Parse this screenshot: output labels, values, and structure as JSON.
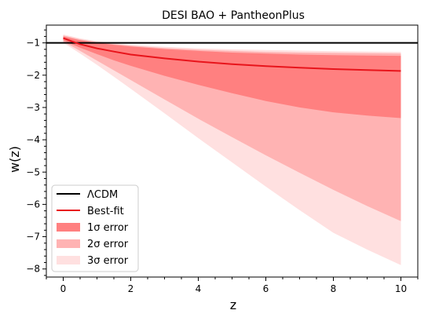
{
  "chart_data": {
    "type": "line",
    "title": "DESI BAO + PantheonPlus",
    "xlabel": "z",
    "ylabel": "w(z)",
    "xlim": [
      -0.5,
      10.5
    ],
    "ylim": [
      -8.25,
      -0.45
    ],
    "xticks": [
      0,
      2,
      4,
      6,
      8,
      10
    ],
    "yticks": [
      -1,
      -2,
      -3,
      -4,
      -5,
      -6,
      -7,
      -8
    ],
    "xtick_labels": [
      "0",
      "2",
      "4",
      "6",
      "8",
      "10"
    ],
    "ytick_labels": [
      "−1",
      "−2",
      "−3",
      "−4",
      "−5",
      "−6",
      "−7",
      "−8"
    ],
    "grid": false,
    "legend_position": "lower-left",
    "x": [
      0,
      0.25,
      0.5,
      1,
      1.5,
      2,
      3,
      4,
      5,
      6,
      7,
      8,
      9,
      10
    ],
    "series": [
      {
        "name": "ΛCDM",
        "role": "line",
        "color": "#000000",
        "values": [
          -1,
          -1,
          -1,
          -1,
          -1,
          -1,
          -1,
          -1,
          -1,
          -1,
          -1,
          -1,
          -1,
          -1
        ]
      },
      {
        "name": "Best-fit",
        "role": "line",
        "color": "#e8141b",
        "values": [
          -0.85,
          -0.95,
          -1.04,
          -1.17,
          -1.27,
          -1.36,
          -1.48,
          -1.58,
          -1.66,
          -1.72,
          -1.77,
          -1.81,
          -1.84,
          -1.87
        ]
      },
      {
        "name": "1σ error",
        "role": "band",
        "color": "#ff8080",
        "upper": [
          -0.8,
          -0.86,
          -0.92,
          -1.0,
          -1.06,
          -1.11,
          -1.19,
          -1.25,
          -1.3,
          -1.33,
          -1.36,
          -1.38,
          -1.39,
          -1.4
        ],
        "lower": [
          -0.92,
          -1.04,
          -1.15,
          -1.35,
          -1.54,
          -1.71,
          -2.02,
          -2.3,
          -2.56,
          -2.8,
          -3.0,
          -3.15,
          -3.25,
          -3.33
        ]
      },
      {
        "name": "2σ error",
        "role": "band",
        "color": "#ffb3b3",
        "upper": [
          -0.77,
          -0.83,
          -0.89,
          -0.98,
          -1.04,
          -1.09,
          -1.16,
          -1.21,
          -1.25,
          -1.28,
          -1.3,
          -1.31,
          -1.32,
          -1.33
        ],
        "lower": [
          -0.96,
          -1.1,
          -1.25,
          -1.55,
          -1.85,
          -2.15,
          -2.75,
          -3.35,
          -3.92,
          -4.48,
          -5.02,
          -5.55,
          -6.05,
          -6.52
        ]
      },
      {
        "name": "3σ error",
        "role": "band",
        "color": "#ffe0e0",
        "upper": [
          -0.74,
          -0.8,
          -0.86,
          -0.95,
          -1.01,
          -1.06,
          -1.12,
          -1.17,
          -1.2,
          -1.22,
          -1.24,
          -1.26,
          -1.27,
          -1.28
        ],
        "lower": [
          -1.0,
          -1.16,
          -1.33,
          -1.68,
          -2.05,
          -2.42,
          -3.18,
          -3.95,
          -4.7,
          -5.45,
          -6.18,
          -6.88,
          -7.4,
          -7.88
        ]
      }
    ],
    "legend": [
      {
        "label": "ΛCDM",
        "kind": "line",
        "color": "#000000"
      },
      {
        "label": "Best-fit",
        "kind": "line",
        "color": "#e8141b"
      },
      {
        "label": "1σ error",
        "kind": "patch",
        "color": "#ff8080"
      },
      {
        "label": "2σ error",
        "kind": "patch",
        "color": "#ffb3b3"
      },
      {
        "label": "3σ error",
        "kind": "patch",
        "color": "#ffe0e0"
      }
    ]
  }
}
